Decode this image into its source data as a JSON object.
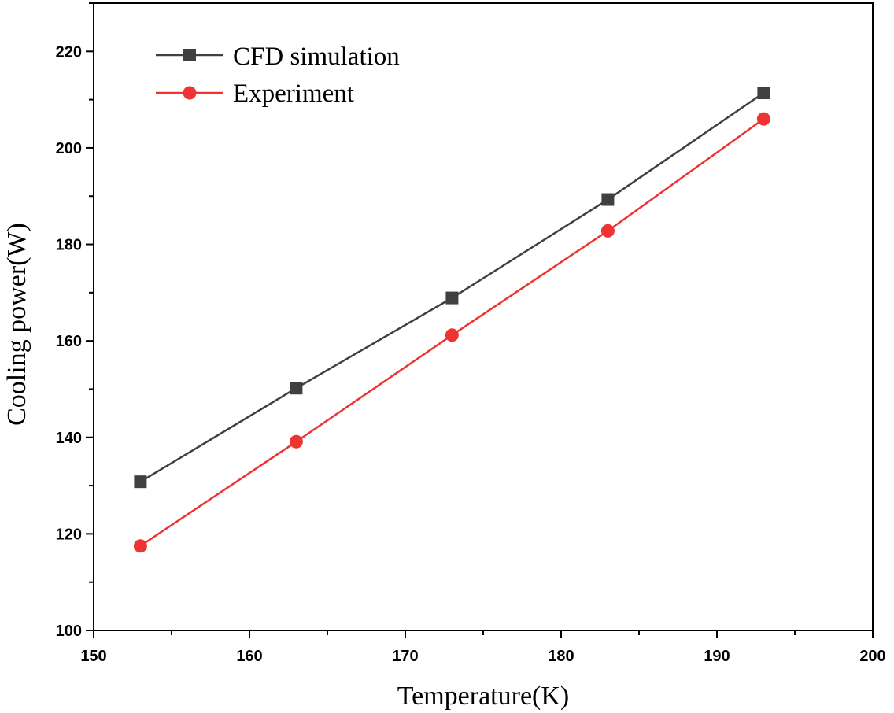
{
  "chart_data": {
    "type": "line",
    "title": "",
    "xlabel": "Temperature(K)",
    "ylabel": "Cooling power(W)",
    "xlim": [
      150,
      200
    ],
    "ylim": [
      100,
      230
    ],
    "xticks": [
      150,
      160,
      170,
      180,
      190,
      200
    ],
    "yticks": [
      100,
      120,
      140,
      160,
      180,
      200,
      220
    ],
    "x_minor_step": 5,
    "y_minor_step": 10,
    "grid": false,
    "legend_position": "top-left",
    "x": [
      153,
      163,
      173,
      183,
      193
    ],
    "series": [
      {
        "name": "CFD simulation",
        "marker": "square",
        "color": "#404040",
        "values": [
          130.8,
          150.2,
          168.9,
          189.3,
          211.4
        ]
      },
      {
        "name": "Experiment",
        "marker": "circle",
        "color": "#ee3333",
        "values": [
          117.5,
          139.1,
          161.2,
          182.8,
          206.0
        ]
      }
    ]
  }
}
